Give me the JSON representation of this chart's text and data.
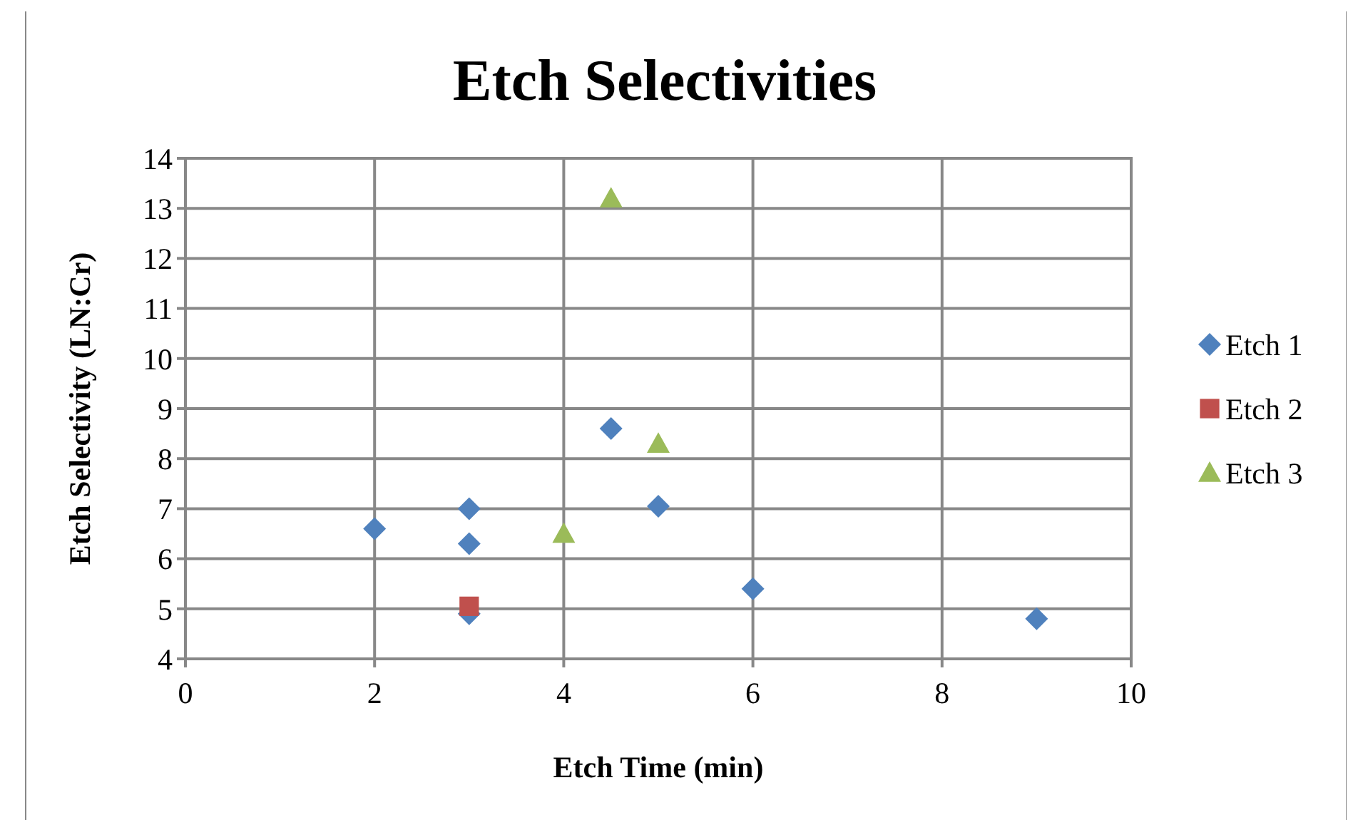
{
  "chart_data": {
    "type": "scatter",
    "title": "Etch Selectivities",
    "xlabel": "Etch Time (min)",
    "ylabel": "Etch Selectivity (LN:Cr)",
    "xlim": [
      0,
      10
    ],
    "xticks": [
      0,
      2,
      4,
      6,
      8,
      10
    ],
    "ylim": [
      4,
      14
    ],
    "yticks": [
      4,
      5,
      6,
      7,
      8,
      9,
      10,
      11,
      12,
      13,
      14
    ],
    "grid": true,
    "legend": "right",
    "series": [
      {
        "name": "Etch 1",
        "color": "#4f81bd",
        "marker": "diamond",
        "x": [
          2,
          3,
          3,
          3,
          4.5,
          5,
          6,
          9
        ],
        "values": [
          6.6,
          7.0,
          6.3,
          4.9,
          8.6,
          7.05,
          5.4,
          4.8
        ]
      },
      {
        "name": "Etch 2",
        "color": "#c0504d",
        "marker": "square",
        "x": [
          3
        ],
        "values": [
          5.05
        ]
      },
      {
        "name": "Etch 3",
        "color": "#9bbb59",
        "marker": "triangle",
        "x": [
          4,
          4.5,
          5
        ],
        "values": [
          6.5,
          13.2,
          8.3
        ]
      }
    ]
  }
}
